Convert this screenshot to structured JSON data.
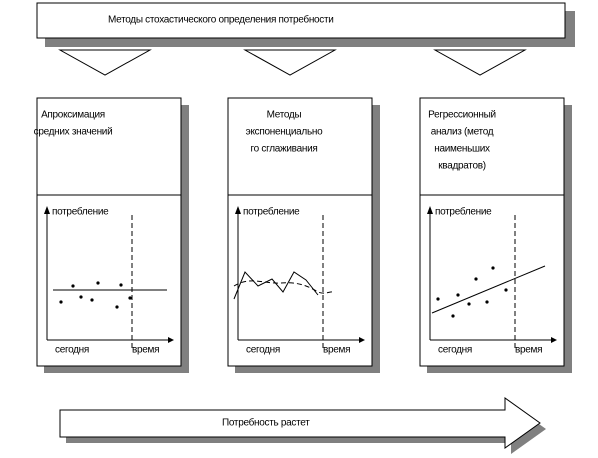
{
  "header": {
    "title": "Методы стохастического определения потребности"
  },
  "panels": [
    {
      "title_lines": [
        "Апроксимация",
        "средних значений"
      ],
      "y_label": "потребление",
      "x_left": "сегодня",
      "x_right": "время"
    },
    {
      "title_lines": [
        "Методы",
        "экспоненциально",
        "го сглаживания"
      ],
      "y_label": "потребление",
      "x_left": "сегодня",
      "x_right": "время"
    },
    {
      "title_lines": [
        "Регрессионный",
        "анализ (метод",
        "наименьших",
        "квадратов)"
      ],
      "y_label": "потребление",
      "x_left": "сегодня",
      "x_right": "время"
    }
  ],
  "footer": {
    "arrow_label": "Потребность растет"
  }
}
